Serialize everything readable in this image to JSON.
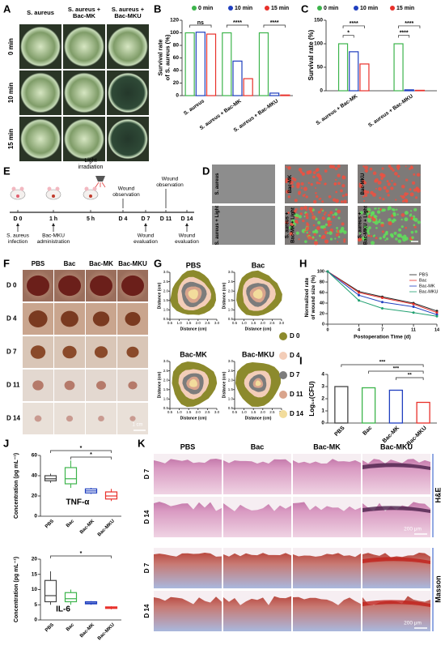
{
  "panels": {
    "A": {
      "label": "A",
      "columns": [
        [
          "S. aureus"
        ],
        [
          "S. aureus +",
          "Bac-MK"
        ],
        [
          "S. aureus +",
          "Bac-MKU"
        ]
      ],
      "rows": [
        "0 min",
        "10 min",
        "15 min"
      ]
    },
    "B": {
      "label": "B",
      "y_label": [
        "Survival rate",
        "of S. aureus (%)"
      ],
      "categories": [
        "S. aureus",
        "S. aureus + Bac-MK",
        "S. aureus + Bac-MKU"
      ],
      "series": [
        {
          "name": "0 min",
          "color": "#3cb44b",
          "values": [
            100,
            100,
            100
          ]
        },
        {
          "name": "10 min",
          "color": "#1f3fbf",
          "values": [
            101,
            55,
            4
          ]
        },
        {
          "name": "15 min",
          "color": "#e8302a",
          "values": [
            98,
            27,
            1
          ]
        }
      ],
      "ylim": [
        0,
        120
      ],
      "yticks": [
        0,
        20,
        40,
        60,
        80,
        100,
        120
      ],
      "significance": [
        "ns",
        "****",
        "****"
      ]
    },
    "C": {
      "label": "C",
      "y_label": "Survival rate (%)",
      "categories": [
        "S. aureus + Bac-MK",
        "S. aureus + Bac-MKU"
      ],
      "series": [
        {
          "name": "0 min",
          "color": "#3cb44b",
          "values": [
            100,
            100
          ]
        },
        {
          "name": "10 min",
          "color": "#1f3fbf",
          "values": [
            83,
            2
          ]
        },
        {
          "name": "15 min",
          "color": "#e8302a",
          "values": [
            57,
            1
          ]
        }
      ],
      "ylim": [
        0,
        150
      ],
      "yticks": [
        0,
        50,
        100,
        150
      ],
      "significance": [
        "*",
        "****",
        "****",
        "****"
      ]
    },
    "D": {
      "label": "D",
      "top": [
        [
          "S. aureus"
        ],
        [
          "Bac-MK"
        ],
        [
          "Bac-MKU"
        ]
      ],
      "bottom": [
        [
          "S. aureus + Light"
        ],
        [
          "S. aureus +",
          "Bac-MK + Light"
        ],
        [
          "S. aureus +",
          "Bac-MKU + Light"
        ]
      ]
    },
    "E": {
      "label": "E",
      "timepoints": [
        "D 0",
        "1 h",
        "5 h",
        "D 4",
        "D 7",
        "D 11",
        "D 14"
      ],
      "light": [
        "Light",
        "irradiation"
      ],
      "observation_1": [
        "Wound",
        "observation"
      ],
      "observation_2": [
        "Wound",
        "observation"
      ],
      "infection": [
        "S. aureus",
        "infection"
      ],
      "administration": [
        "Bac-MKU",
        "administration"
      ],
      "evaluation_1": [
        "Wound",
        "evaluation"
      ],
      "evaluation_2": [
        "Wound",
        "evaluation"
      ]
    },
    "F": {
      "label": "F",
      "columns": [
        "PBS",
        "Bac",
        "Bac-MK",
        "Bac-MKU"
      ],
      "rows": [
        "D 0",
        "D 4",
        "D 7",
        "D 11",
        "D 14"
      ],
      "scale": "1 cm"
    },
    "G": {
      "label": "G",
      "plots": [
        "PBS",
        "Bac",
        "Bac-MK",
        "Bac-MKU"
      ],
      "axis_label": "Distance (cm)",
      "lim": [
        0.5,
        3
      ],
      "ticks": [
        0.5,
        {
          "value": 1,
          "label": "1.0"
        },
        1.5,
        {
          "value": 2,
          "label": "2.0"
        },
        2.5,
        {
          "value": 3,
          "label": "3.0"
        }
      ],
      "legend": [
        {
          "name": "D 0",
          "color": "#8c8a2c"
        },
        {
          "name": "D 4",
          "color": "#f3cdb8"
        },
        {
          "name": "D 7",
          "color": "#7c7c7c"
        },
        {
          "name": "D 11",
          "color": "#d9a48c"
        },
        {
          "name": "D 14",
          "color": "#f2dc9c"
        }
      ]
    },
    "H": {
      "label": "H",
      "y_label": [
        "Normalized rate",
        "of wound size (%)"
      ],
      "x_label": "Postoperation Time (d)",
      "x": [
        0,
        4,
        7,
        11,
        14
      ],
      "xlim": [
        0,
        14
      ],
      "xticks": [
        0,
        4,
        7,
        11,
        14
      ],
      "ylim": [
        0,
        100
      ],
      "yticks": [
        0,
        20,
        40,
        60,
        80,
        100
      ],
      "series": [
        {
          "name": "PBS",
          "color": "#222222",
          "values": [
            100,
            62,
            52,
            40,
            25
          ]
        },
        {
          "name": "Bac",
          "color": "#e8302a",
          "values": [
            100,
            60,
            50,
            38,
            22
          ]
        },
        {
          "name": "Bac-MK",
          "color": "#1f3fbf",
          "values": [
            100,
            55,
            42,
            33,
            18
          ]
        },
        {
          "name": "Bac-MKU",
          "color": "#20a070",
          "values": [
            100,
            45,
            30,
            22,
            15
          ]
        }
      ]
    },
    "I": {
      "label": "I",
      "y_label": "Log₁₀(CFU)",
      "categories": [
        "PBS",
        "Bac",
        "Bac-MK",
        "Bac-MKU"
      ],
      "values": [
        3.0,
        2.9,
        2.7,
        1.7
      ],
      "colors": [
        "#444444",
        "#3cb44b",
        "#1f3fbf",
        "#e8302a"
      ],
      "ylim": [
        0,
        4
      ],
      "yticks": [
        0,
        1,
        2,
        3,
        4
      ],
      "significance": [
        "***",
        "***",
        "**"
      ]
    },
    "J": {
      "label": "J",
      "y_label": "Concentration (pg mL⁻¹)",
      "categories": [
        "PBS",
        "Bac",
        "Bac-MK",
        "Bac-MKU"
      ],
      "colors": [
        "#444444",
        "#3cb44b",
        "#1f3fbf",
        "#e8302a"
      ],
      "plots": [
        {
          "name": "TNF-α",
          "ylim": [
            0,
            60
          ],
          "yticks": [
            0,
            20,
            40,
            60
          ],
          "boxes": [
            [
              33,
              35,
              37,
              40,
              42
            ],
            [
              28,
              32,
              37,
              48,
              55
            ],
            [
              22,
              23,
              25,
              27,
              28
            ],
            [
              15,
              17,
              20,
              24,
              27
            ]
          ],
          "significance": [
            "*",
            "*"
          ]
        },
        {
          "name": "IL-6",
          "ylim": [
            0,
            20
          ],
          "yticks": [
            0,
            5,
            10,
            15,
            20
          ],
          "boxes": [
            [
              5,
              6,
              8,
              13,
              16
            ],
            [
              5,
              6,
              7,
              9,
              10
            ],
            [
              5,
              5.3,
              5.6,
              6,
              6.2
            ],
            [
              3.5,
              3.8,
              4,
              4.3,
              4.5
            ]
          ],
          "significance": [
            "*"
          ]
        }
      ]
    },
    "K": {
      "label": "K",
      "columns": [
        "PBS",
        "Bac",
        "Bac-MK",
        "Bac-MKU"
      ],
      "rows": [
        "D 7",
        "D 14",
        "D 7",
        "D 14"
      ],
      "stains": [
        "H&E",
        "Masson"
      ],
      "scale": "200 μm"
    }
  }
}
